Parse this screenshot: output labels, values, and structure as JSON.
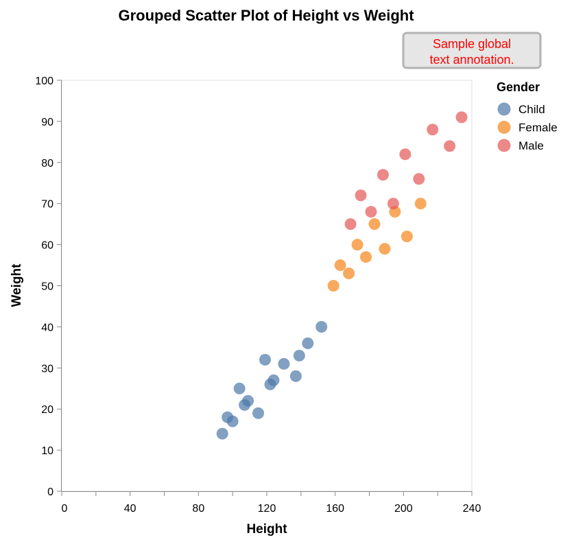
{
  "chart_data": {
    "type": "scatter",
    "title": "Grouped Scatter Plot of Height vs Weight",
    "xlabel": "Height",
    "ylabel": "Weight",
    "xlim": [
      0,
      240
    ],
    "ylim": [
      0,
      100
    ],
    "x_ticks": [
      0,
      20,
      40,
      60,
      80,
      100,
      120,
      140,
      160,
      180,
      200,
      220,
      240
    ],
    "x_tick_labels": [
      "0",
      "",
      "40",
      "",
      "80",
      "",
      "120",
      "",
      "160",
      "",
      "200",
      "",
      "240"
    ],
    "y_ticks": [
      0,
      10,
      20,
      30,
      40,
      50,
      60,
      70,
      80,
      90,
      100
    ],
    "y_tick_labels": [
      "0",
      "10",
      "20",
      "30",
      "40",
      "50",
      "60",
      "70",
      "80",
      "90",
      "100"
    ],
    "grid": false,
    "legend": {
      "title": "Gender",
      "placement": "right"
    },
    "annotation": {
      "text_lines": [
        "Sample global",
        "text annotation."
      ],
      "color": "#ff0000",
      "background": "#e6e6e6",
      "border": "#b3b3b3"
    },
    "series": [
      {
        "name": "Child",
        "color": "#4c78a8",
        "points": [
          [
            94,
            14
          ],
          [
            97,
            18
          ],
          [
            100,
            17
          ],
          [
            104,
            25
          ],
          [
            107,
            21
          ],
          [
            109,
            22
          ],
          [
            115,
            19
          ],
          [
            119,
            32
          ],
          [
            122,
            26
          ],
          [
            124,
            27
          ],
          [
            130,
            31
          ],
          [
            137,
            28
          ],
          [
            139,
            33
          ],
          [
            144,
            36
          ],
          [
            152,
            40
          ]
        ]
      },
      {
        "name": "Female",
        "color": "#f58518",
        "points": [
          [
            159,
            50
          ],
          [
            163,
            55
          ],
          [
            168,
            53
          ],
          [
            173,
            60
          ],
          [
            178,
            57
          ],
          [
            183,
            65
          ],
          [
            189,
            59
          ],
          [
            195,
            68
          ],
          [
            202,
            62
          ],
          [
            210,
            70
          ]
        ]
      },
      {
        "name": "Male",
        "color": "#e45756",
        "points": [
          [
            169,
            65
          ],
          [
            175,
            72
          ],
          [
            181,
            68
          ],
          [
            188,
            77
          ],
          [
            194,
            70
          ],
          [
            201,
            82
          ],
          [
            209,
            76
          ],
          [
            217,
            88
          ],
          [
            227,
            84
          ],
          [
            234,
            91
          ]
        ]
      }
    ]
  }
}
